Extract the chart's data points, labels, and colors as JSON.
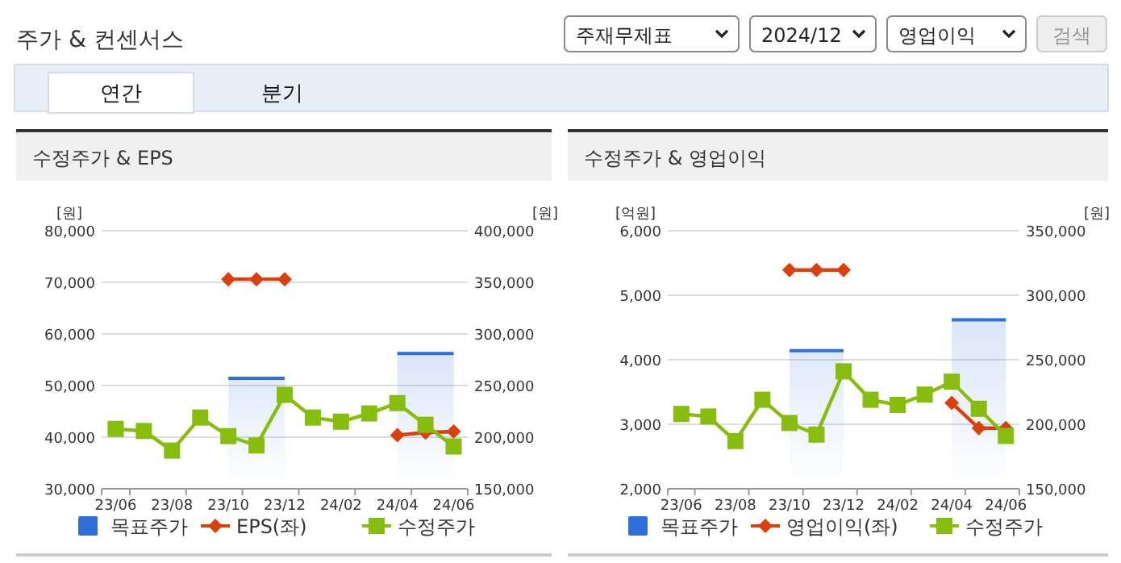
{
  "chart_data": [
    {
      "type": "other",
      "title": "주가 & 컨센서스",
      "annotations": [
        "주재무제표",
        "2024/12",
        "영업이익",
        "검색",
        "연간",
        "분기"
      ]
    },
    {
      "type": "line",
      "title": "수정주가 & EPS",
      "ylabel": "[원]",
      "y2label": "[원]",
      "categories": [
        "23/06",
        null,
        "23/08",
        null,
        "23/10",
        null,
        "23/12",
        null,
        "24/02",
        null,
        "24/04",
        null,
        "24/06"
      ],
      "series": [
        {
          "name": "목표주가",
          "type": "area",
          "axis": "y2",
          "color": "#2f6fdc",
          "values": [
            null,
            null,
            null,
            null,
            257000,
            257000,
            257000,
            null,
            null,
            null,
            281000,
            281000,
            281000
          ]
        },
        {
          "name": "EPS(좌)",
          "type": "line",
          "marker": "diamond",
          "color": "#d9400b",
          "values": [
            null,
            null,
            null,
            null,
            70600,
            70600,
            70600,
            null,
            null,
            null,
            40400,
            40900,
            41100
          ]
        },
        {
          "name": "수정주가",
          "type": "line",
          "marker": "square",
          "axis": "y2",
          "color": "#86bd0e",
          "values": [
            208000,
            206000,
            187000,
            219000,
            201000,
            192000,
            241000,
            219000,
            215000,
            223000,
            233000,
            212000,
            191000
          ]
        }
      ],
      "ylim": [
        30000,
        80000
      ],
      "yticks": [
        {
          "value": 30000,
          "label": "30,000"
        },
        {
          "value": 40000,
          "label": "40,000"
        },
        {
          "value": 50000,
          "label": "50,000"
        },
        {
          "value": 60000,
          "label": "60,000"
        },
        {
          "value": 70000,
          "label": "70,000"
        },
        {
          "value": 80000,
          "label": "80,000"
        }
      ],
      "y2lim": [
        150000,
        400000
      ],
      "y2ticks": [
        {
          "value": 150000,
          "label": "150,000"
        },
        {
          "value": 200000,
          "label": "200,000"
        },
        {
          "value": 250000,
          "label": "250,000"
        },
        {
          "value": 300000,
          "label": "300,000"
        },
        {
          "value": 350000,
          "label": "350,000"
        },
        {
          "value": 400000,
          "label": "400,000"
        }
      ],
      "grid": "y",
      "legend": "bottom"
    },
    {
      "type": "line",
      "title": "수정주가 & 영업이익",
      "ylabel": "[억원]",
      "y2label": "[원]",
      "categories": [
        "23/06",
        null,
        "23/08",
        null,
        "23/10",
        null,
        "23/12",
        null,
        "24/02",
        null,
        "24/04",
        null,
        "24/06"
      ],
      "series": [
        {
          "name": "목표주가",
          "type": "area",
          "axis": "y2",
          "color": "#2f6fdc",
          "values": [
            null,
            null,
            null,
            null,
            257000,
            257000,
            257000,
            null,
            null,
            null,
            281000,
            281000,
            281000
          ]
        },
        {
          "name": "영업이익(좌)",
          "type": "line",
          "marker": "diamond",
          "color": "#d9400b",
          "values": [
            null,
            null,
            null,
            null,
            5390,
            5390,
            5390,
            null,
            null,
            null,
            3330,
            2940,
            2940
          ]
        },
        {
          "name": "수정주가",
          "type": "line",
          "marker": "square",
          "axis": "y2",
          "color": "#86bd0e",
          "values": [
            208000,
            206000,
            187000,
            219000,
            201000,
            192000,
            241000,
            219000,
            215000,
            223000,
            233000,
            212000,
            191000
          ]
        }
      ],
      "ylim": [
        2000,
        6000
      ],
      "yticks": [
        {
          "value": 2000,
          "label": "2,000"
        },
        {
          "value": 3000,
          "label": "3,000"
        },
        {
          "value": 4000,
          "label": "4,000"
        },
        {
          "value": 5000,
          "label": "5,000"
        },
        {
          "value": 6000,
          "label": "6,000"
        }
      ],
      "y2lim": [
        150000,
        350000
      ],
      "y2ticks": [
        {
          "value": 150000,
          "label": "150,000"
        },
        {
          "value": 200000,
          "label": "200,000"
        },
        {
          "value": 250000,
          "label": "250,000"
        },
        {
          "value": 300000,
          "label": "300,000"
        },
        {
          "value": 350000,
          "label": "350,000"
        }
      ],
      "grid": "y",
      "legend": "bottom"
    }
  ]
}
